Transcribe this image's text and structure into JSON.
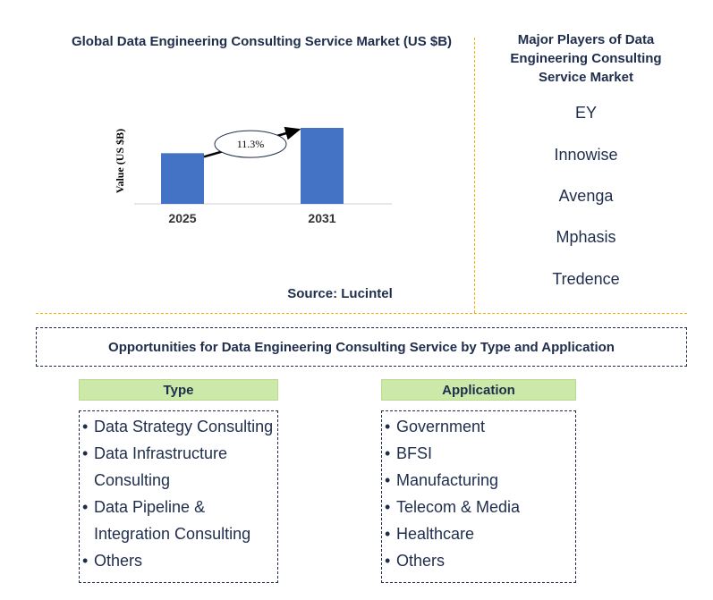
{
  "chart_data": {
    "type": "bar",
    "title": "Global Data Engineering Consulting Service Market (US $B)",
    "categories": [
      "2025",
      "2031"
    ],
    "values": [
      1.0,
      1.5
    ],
    "ylabel": "Value (US $B)",
    "xlabel": "",
    "annotation": "11.3%",
    "bar_color": "#4472c4",
    "grid": false
  },
  "source": "Source: Lucintel",
  "players": {
    "title": "Major Players of Data Engineering Consulting Service Market",
    "items": [
      "EY",
      "Innowise",
      "Avenga",
      "Mphasis",
      "Tredence"
    ]
  },
  "opportunities": {
    "title": "Opportunities for Data Engineering Consulting Service by Type and Application",
    "type": {
      "header": "Type",
      "items": [
        "Data Strategy Consulting",
        "Data Infrastructure Consulting",
        "Data Pipeline & Integration Consulting",
        "Others"
      ]
    },
    "application": {
      "header": "Application",
      "items": [
        "Government",
        "BFSI",
        "Manufacturing",
        "Telecom & Media",
        "Healthcare",
        "Others"
      ]
    }
  },
  "colors": {
    "text": "#1f2d4d",
    "divider": "#f0b400",
    "header_bg": "#cde9a9"
  }
}
